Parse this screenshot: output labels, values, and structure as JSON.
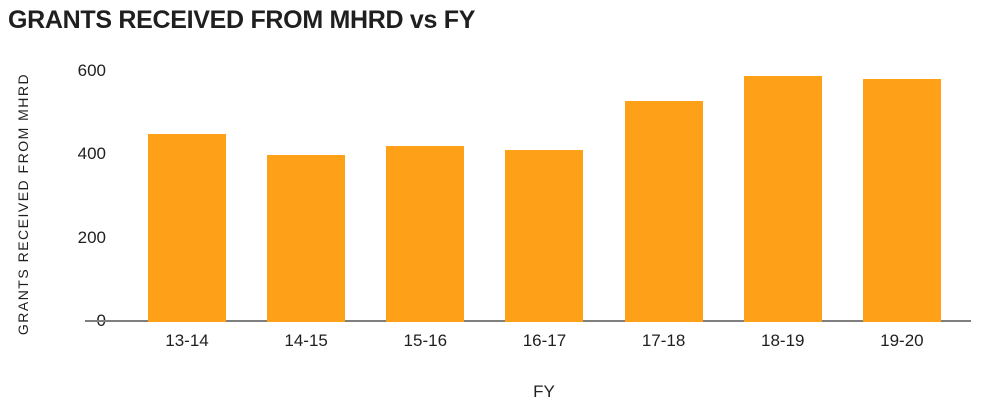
{
  "chart_data": {
    "type": "bar",
    "title": "GRANTS RECEIVED FROM MHRD vs FY",
    "xlabel": "FY",
    "ylabel": "GRANTS RECEIVED FROM MHRD",
    "categories": [
      "13-14",
      "14-15",
      "15-16",
      "16-17",
      "17-18",
      "18-19",
      "19-20"
    ],
    "values": [
      450,
      398,
      420,
      411,
      528,
      587,
      581
    ],
    "ylim": [
      0,
      600
    ],
    "yticks": [
      0,
      200,
      400,
      600
    ],
    "grid": false,
    "legend_position": "none",
    "bar_color": "#FFA019",
    "axis_line_color": "#7f7f7f",
    "text_color": "#1f1f1f",
    "background_color": "#ffffff"
  }
}
